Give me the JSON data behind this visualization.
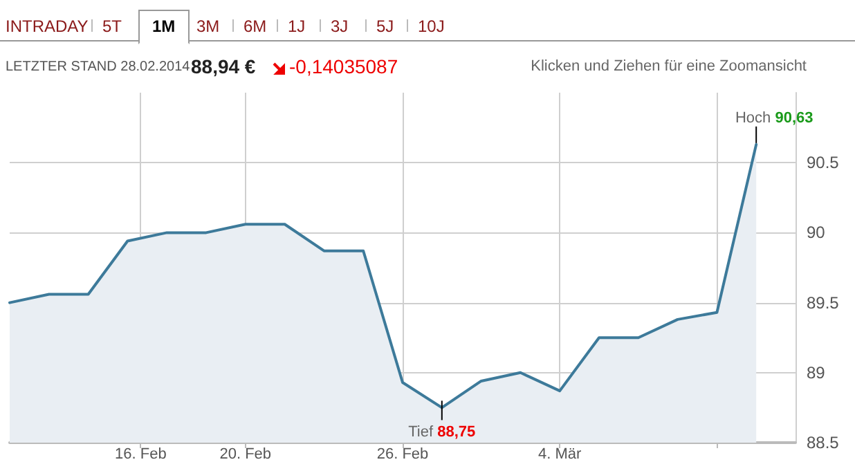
{
  "chart_data": {
    "type": "area",
    "title": "LETZTER STAND 28.02.2014",
    "annotations": [
      "INTRADAY",
      "5T",
      "1M",
      "3M",
      "6M",
      "1J",
      "3J",
      "5J",
      "10J",
      "88,94 €",
      "-0,14035087",
      "Klicken und Ziehen für eine Zoomansicht",
      {
        "text": "Hoch 90,63",
        "x": "2014-03-11T12:00",
        "y": 90.63
      },
      {
        "text": "Tief 88,75",
        "x": "2014-02-27T12:00",
        "y": 88.75
      }
    ],
    "x": [
      "2014-02-11T00:00",
      "2014-02-12T12:00",
      "2014-02-14T00:00",
      "2014-02-15T12:00",
      "2014-02-17T00:00",
      "2014-02-18T12:00",
      "2014-02-20T00:00",
      "2014-02-21T12:00",
      "2014-02-23T00:00",
      "2014-02-24T12:00",
      "2014-02-26T00:00",
      "2014-02-27T12:00",
      "2014-03-01T00:00",
      "2014-03-02T12:00",
      "2014-03-04T00:00",
      "2014-03-05T12:00",
      "2014-03-07T00:00",
      "2014-03-08T12:00",
      "2014-03-10T00:00",
      "2014-03-11T12:00"
    ],
    "series": [
      {
        "color": "#3d7a9a",
        "values": [
          89.5,
          89.56,
          89.56,
          89.94,
          90.0,
          90.0,
          90.06,
          90.06,
          89.87,
          89.87,
          88.93,
          88.75,
          88.94,
          89.0,
          88.87,
          89.25,
          89.25,
          89.38,
          89.43,
          90.63
        ]
      }
    ],
    "xlim": [
      "2014-02-11",
      "2014-03-13"
    ],
    "xticks": [
      {
        "value": "2014-02-16",
        "label": "16. Feb"
      },
      {
        "value": "2014-02-20",
        "label": "20. Feb"
      },
      {
        "value": "2014-02-26",
        "label": "26. Feb"
      },
      {
        "value": "2014-03-04",
        "label": "4. Mär"
      },
      {
        "value": "2014-03-10",
        "label": null
      }
    ],
    "ylim": [
      88.5,
      91
    ],
    "yticks": [
      88.5,
      89,
      89.5,
      90,
      90.5
    ],
    "grid": true,
    "marker": "none",
    "line_style": "solid"
  }
}
